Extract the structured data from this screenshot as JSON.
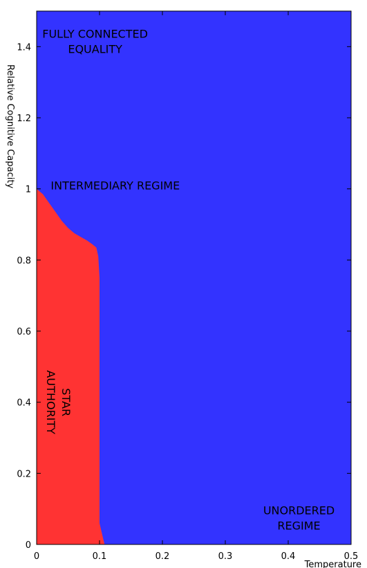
{
  "chart_data": {
    "type": "heatmap",
    "title": "",
    "xlabel": "Temperature",
    "ylabel": "Relative Cognitive Capacity",
    "xlim": [
      0,
      0.5
    ],
    "ylim": [
      0,
      1.5
    ],
    "x_ticks": [
      0,
      0.1,
      0.2,
      0.3,
      0.4,
      0.5
    ],
    "x_tick_labels": [
      "0",
      "0.1",
      "0.2",
      "0.3",
      "0.4",
      "0.5"
    ],
    "y_ticks": [
      0,
      0.2,
      0.4,
      0.6,
      0.8,
      1,
      1.2,
      1.4
    ],
    "y_tick_labels": [
      "0",
      "0.2",
      "0.4",
      "0.6",
      "0.8",
      "1",
      "1.2",
      "1.4"
    ],
    "grid": false,
    "background_color": "#3333ff",
    "region_color": "#ff3333",
    "region_boundary": [
      {
        "x": 0,
        "y": 0
      },
      {
        "x": 0,
        "y": 1.0
      },
      {
        "x": 0.01,
        "y": 0.985
      },
      {
        "x": 0.02,
        "y": 0.96
      },
      {
        "x": 0.03,
        "y": 0.935
      },
      {
        "x": 0.04,
        "y": 0.91
      },
      {
        "x": 0.05,
        "y": 0.89
      },
      {
        "x": 0.06,
        "y": 0.875
      },
      {
        "x": 0.07,
        "y": 0.865
      },
      {
        "x": 0.08,
        "y": 0.855
      },
      {
        "x": 0.088,
        "y": 0.845
      },
      {
        "x": 0.095,
        "y": 0.835
      },
      {
        "x": 0.098,
        "y": 0.81
      },
      {
        "x": 0.1,
        "y": 0.75
      },
      {
        "x": 0.1,
        "y": 0.06
      },
      {
        "x": 0.104,
        "y": 0.03
      },
      {
        "x": 0.108,
        "y": 0.0
      }
    ],
    "annotations": [
      {
        "name": "fully-connected",
        "lines": [
          "FULLY CONNECTED",
          "EQUALITY"
        ],
        "x": 0.093,
        "y": 1.415,
        "rotate": 0
      },
      {
        "name": "intermediary",
        "lines": [
          "INTERMEDIARY REGIME"
        ],
        "x": 0.125,
        "y": 1.01,
        "rotate": 0
      },
      {
        "name": "star-authority",
        "lines": [
          "STAR",
          "AUTHORITY"
        ],
        "x": 0.035,
        "y": 0.4,
        "rotate": 90
      },
      {
        "name": "unordered",
        "lines": [
          "UNORDERED",
          "REGIME"
        ],
        "x": 0.417,
        "y": 0.075,
        "rotate": 0
      }
    ]
  }
}
